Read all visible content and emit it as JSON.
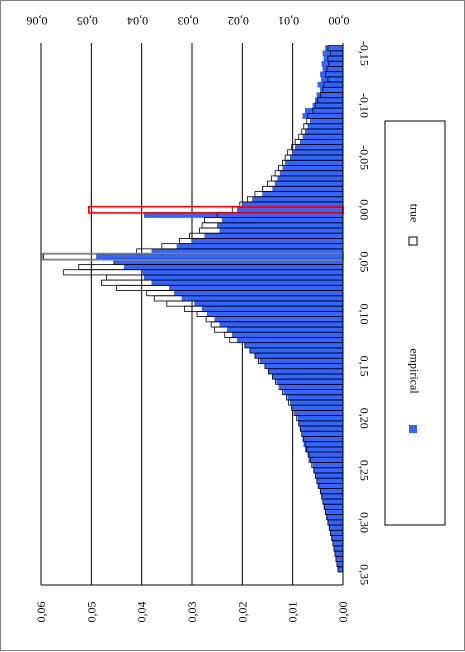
{
  "chart_data": {
    "type": "bar",
    "orientation": "rotated-90",
    "x_ticks": [
      "-0,15",
      "-0,10",
      "-0,05",
      "0,00",
      "0,05",
      "0,10",
      "0,15",
      "0,20",
      "0,25",
      "0,30",
      "0,35"
    ],
    "y_ticks": [
      "0,00",
      "0,01",
      "0,02",
      "0,03",
      "0,04",
      "0,05",
      "0,06"
    ],
    "ylim": [
      0,
      0.06
    ],
    "xlim": [
      -0.16,
      0.36
    ],
    "grid": true,
    "legend_position": "right",
    "series": [
      {
        "name": "empirical",
        "style": "filled",
        "color": "#3366ff",
        "x": [
          -0.155,
          -0.15,
          -0.145,
          -0.14,
          -0.135,
          -0.13,
          -0.125,
          -0.12,
          -0.115,
          -0.11,
          -0.105,
          -0.1,
          -0.095,
          -0.09,
          -0.085,
          -0.08,
          -0.075,
          -0.07,
          -0.065,
          -0.06,
          -0.055,
          -0.05,
          -0.045,
          -0.04,
          -0.035,
          -0.03,
          -0.025,
          -0.02,
          -0.015,
          -0.01,
          -0.005,
          0.0,
          0.005,
          0.01,
          0.015,
          0.02,
          0.025,
          0.03,
          0.035,
          0.04,
          0.045,
          0.05,
          0.055,
          0.06,
          0.065,
          0.07,
          0.075,
          0.08,
          0.085,
          0.09,
          0.095,
          0.1,
          0.105,
          0.11,
          0.115,
          0.12,
          0.125,
          0.13,
          0.135,
          0.14,
          0.145,
          0.15,
          0.155,
          0.16,
          0.165,
          0.17,
          0.175,
          0.18,
          0.185,
          0.19,
          0.195,
          0.2,
          0.205,
          0.21,
          0.215,
          0.22,
          0.225,
          0.23,
          0.235,
          0.24,
          0.245,
          0.25,
          0.255,
          0.26,
          0.265,
          0.27,
          0.275,
          0.28,
          0.285,
          0.29,
          0.295,
          0.3,
          0.305,
          0.31,
          0.315,
          0.32,
          0.325,
          0.33,
          0.335,
          0.34,
          0.345
        ],
        "values": [
          0.0035,
          0.004,
          0.0038,
          0.0042,
          0.004,
          0.0045,
          0.0043,
          0.005,
          0.0045,
          0.0052,
          0.0055,
          0.006,
          0.0075,
          0.008,
          0.0065,
          0.007,
          0.0075,
          0.008,
          0.0085,
          0.0095,
          0.01,
          0.0105,
          0.0115,
          0.012,
          0.0125,
          0.013,
          0.0135,
          0.014,
          0.016,
          0.018,
          0.02,
          0.021,
          0.0395,
          0.024,
          0.025,
          0.0245,
          0.0275,
          0.03,
          0.033,
          0.038,
          0.049,
          0.0455,
          0.0435,
          0.04,
          0.0395,
          0.038,
          0.0345,
          0.0335,
          0.032,
          0.0295,
          0.028,
          0.027,
          0.0255,
          0.0245,
          0.023,
          0.022,
          0.021,
          0.0195,
          0.0185,
          0.0175,
          0.0165,
          0.0155,
          0.0148,
          0.014,
          0.0132,
          0.0125,
          0.0118,
          0.011,
          0.0105,
          0.01,
          0.0095,
          0.009,
          0.0087,
          0.0085,
          0.0082,
          0.008,
          0.0078,
          0.0075,
          0.007,
          0.0068,
          0.006,
          0.0058,
          0.0055,
          0.0052,
          0.005,
          0.0045,
          0.0043,
          0.004,
          0.0038,
          0.0035,
          0.0033,
          0.003,
          0.0028,
          0.0025,
          0.0023,
          0.002,
          0.0018,
          0.0015,
          0.0013,
          0.0012,
          0.001
        ]
      },
      {
        "name": "true",
        "style": "outline",
        "color": "#000000",
        "x": [
          -0.155,
          -0.15,
          -0.145,
          -0.14,
          -0.135,
          -0.13,
          -0.125,
          -0.12,
          -0.115,
          -0.11,
          -0.105,
          -0.1,
          -0.095,
          -0.09,
          -0.085,
          -0.08,
          -0.075,
          -0.07,
          -0.065,
          -0.06,
          -0.055,
          -0.05,
          -0.045,
          -0.04,
          -0.035,
          -0.03,
          -0.025,
          -0.02,
          -0.015,
          -0.01,
          -0.005,
          0.0,
          0.005,
          0.01,
          0.015,
          0.02,
          0.025,
          0.03,
          0.035,
          0.04,
          0.045,
          0.05,
          0.055,
          0.06,
          0.065,
          0.07,
          0.075,
          0.08,
          0.085,
          0.09,
          0.095,
          0.1,
          0.105,
          0.11,
          0.115,
          0.12,
          0.125,
          0.13,
          0.135,
          0.14,
          0.145,
          0.15,
          0.155,
          0.16,
          0.165,
          0.17,
          0.175,
          0.18,
          0.185,
          0.19,
          0.195,
          0.2,
          0.205,
          0.21,
          0.215,
          0.22,
          0.225,
          0.23,
          0.235,
          0.24,
          0.245,
          0.25,
          0.255,
          0.26,
          0.265,
          0.27,
          0.275,
          0.28,
          0.285,
          0.29,
          0.295,
          0.3,
          0.305,
          0.31,
          0.315,
          0.32,
          0.325,
          0.33,
          0.335,
          0.34,
          0.345
        ],
        "values": [
          0.003,
          0.0025,
          0.003,
          0.0028,
          0.0032,
          0.0035,
          0.003,
          0.0038,
          0.004,
          0.0045,
          0.005,
          0.0055,
          0.006,
          0.007,
          0.0072,
          0.0078,
          0.0082,
          0.0088,
          0.0095,
          0.0102,
          0.011,
          0.0115,
          0.012,
          0.0128,
          0.0135,
          0.0142,
          0.015,
          0.016,
          0.0175,
          0.019,
          0.0205,
          0.022,
          0.025,
          0.0275,
          0.028,
          0.0285,
          0.0305,
          0.0325,
          0.036,
          0.041,
          0.0595,
          0.0455,
          0.0525,
          0.0555,
          0.047,
          0.048,
          0.045,
          0.039,
          0.0375,
          0.035,
          0.0315,
          0.029,
          0.0272,
          0.0262,
          0.0255,
          0.0235,
          0.0225,
          0.0195,
          0.0185,
          0.0175,
          0.0168,
          0.0155,
          0.0148,
          0.014,
          0.0134,
          0.0127,
          0.012,
          0.0112,
          0.0108,
          0.0102,
          0.0097,
          0.0092,
          0.0088,
          0.0085,
          0.0082,
          0.0078,
          0.0075,
          0.0072,
          0.0068,
          0.0065,
          0.0062,
          0.0058,
          0.0055,
          0.0052,
          0.0048,
          0.0045,
          0.0042,
          0.004,
          0.0037,
          0.0035,
          0.0032,
          0.003,
          0.0027,
          0.0025,
          0.0022,
          0.002,
          0.0018,
          0.0016,
          0.0014,
          0.0012,
          0.001
        ]
      }
    ],
    "highlight_boxes": [
      {
        "x": 0.0,
        "value": 0.0505,
        "color": "#ff0000"
      },
      {
        "x": 0.045,
        "value": 0.0598,
        "color": "#808080"
      }
    ]
  }
}
